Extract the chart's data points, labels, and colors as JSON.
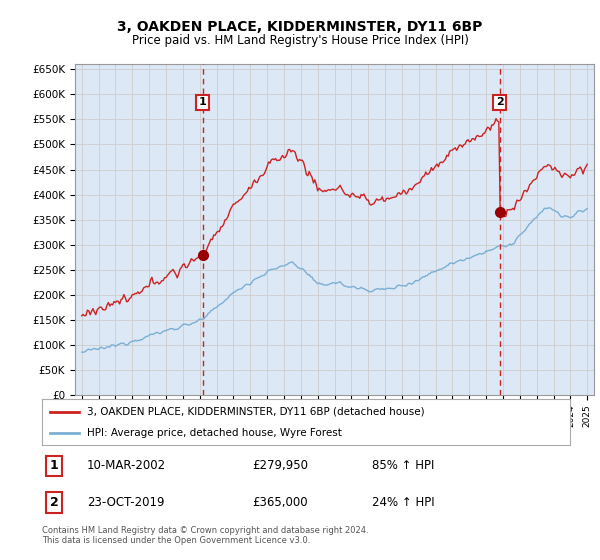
{
  "title": "3, OAKDEN PLACE, KIDDERMINSTER, DY11 6BP",
  "subtitle": "Price paid vs. HM Land Registry's House Price Index (HPI)",
  "legend_line1": "3, OAKDEN PLACE, KIDDERMINSTER, DY11 6BP (detached house)",
  "legend_line2": "HPI: Average price, detached house, Wyre Forest",
  "transaction1_date": "10-MAR-2002",
  "transaction1_price": 279950,
  "transaction1_hpi": "85% ↑ HPI",
  "transaction2_date": "23-OCT-2019",
  "transaction2_price": 365000,
  "transaction2_hpi": "24% ↑ HPI",
  "footer1": "Contains HM Land Registry data © Crown copyright and database right 2024.",
  "footer2": "This data is licensed under the Open Government Licence v3.0.",
  "hpi_color": "#7BAFD4",
  "price_color": "#CC2222",
  "vline_color": "#CC2222",
  "grid_color": "#cccccc",
  "background_color": "#ffffff",
  "plot_bg_color": "#dce8f5",
  "ylim": [
    0,
    660000
  ],
  "yticks": [
    0,
    50000,
    100000,
    150000,
    200000,
    250000,
    300000,
    350000,
    400000,
    450000,
    500000,
    550000,
    600000,
    650000
  ],
  "year_start": 1995,
  "year_end": 2025,
  "t1_year": 2002.17,
  "t2_year": 2019.8,
  "t1_price": 279950,
  "t2_price": 365000
}
